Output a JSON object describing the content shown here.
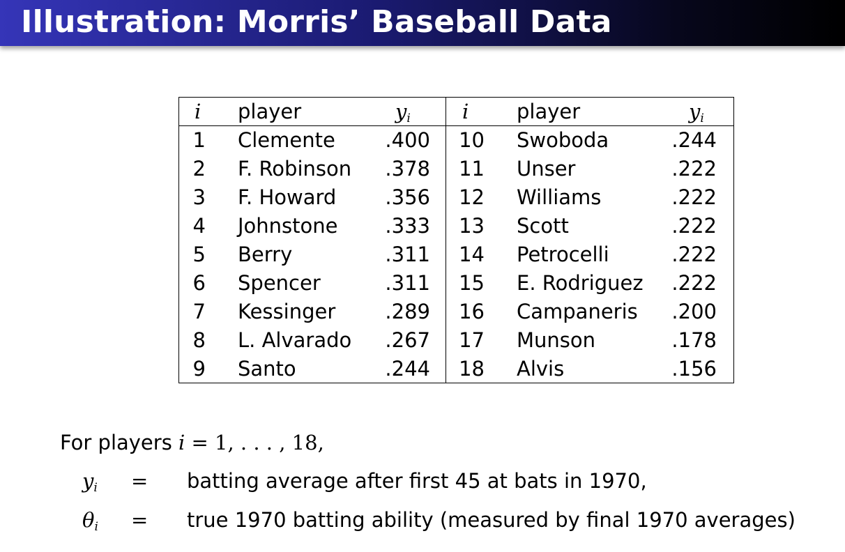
{
  "slide": {
    "title": "Illustration: Morris’ Baseball Data"
  },
  "table": {
    "headers": {
      "index": "i",
      "player": "player",
      "value": "y",
      "value_sub": "i"
    },
    "left_rows": [
      {
        "i": "1",
        "player": "Clemente",
        "y": ".400"
      },
      {
        "i": "2",
        "player": "F. Robinson",
        "y": ".378"
      },
      {
        "i": "3",
        "player": "F. Howard",
        "y": ".356"
      },
      {
        "i": "4",
        "player": "Johnstone",
        "y": ".333"
      },
      {
        "i": "5",
        "player": "Berry",
        "y": ".311"
      },
      {
        "i": "6",
        "player": "Spencer",
        "y": ".311"
      },
      {
        "i": "7",
        "player": "Kessinger",
        "y": ".289"
      },
      {
        "i": "8",
        "player": "L. Alvarado",
        "y": ".267"
      },
      {
        "i": "9",
        "player": "Santo",
        "y": ".244"
      }
    ],
    "right_rows": [
      {
        "i": "10",
        "player": "Swoboda",
        "y": ".244"
      },
      {
        "i": "11",
        "player": "Unser",
        "y": ".222"
      },
      {
        "i": "12",
        "player": "Williams",
        "y": ".222"
      },
      {
        "i": "13",
        "player": "Scott",
        "y": ".222"
      },
      {
        "i": "14",
        "player": "Petrocelli",
        "y": ".222"
      },
      {
        "i": "15",
        "player": "E. Rodriguez",
        "y": ".222"
      },
      {
        "i": "16",
        "player": "Campaneris",
        "y": ".200"
      },
      {
        "i": "17",
        "player": "Munson",
        "y": ".178"
      },
      {
        "i": "18",
        "player": "Alvis",
        "y": ".156"
      }
    ]
  },
  "text": {
    "intro_prefix": "For players ",
    "intro_var": "i",
    "intro_math": " = 1, . . . , 18,",
    "def1_symbol": "y",
    "def1_sub": "i",
    "def1_eq": "=",
    "def1_text": "batting average after first 45 at bats in 1970,",
    "def2_symbol": "θ",
    "def2_sub": "i",
    "def2_eq": "=",
    "def2_text": "true 1970 batting ability (measured by final 1970 averages)"
  }
}
